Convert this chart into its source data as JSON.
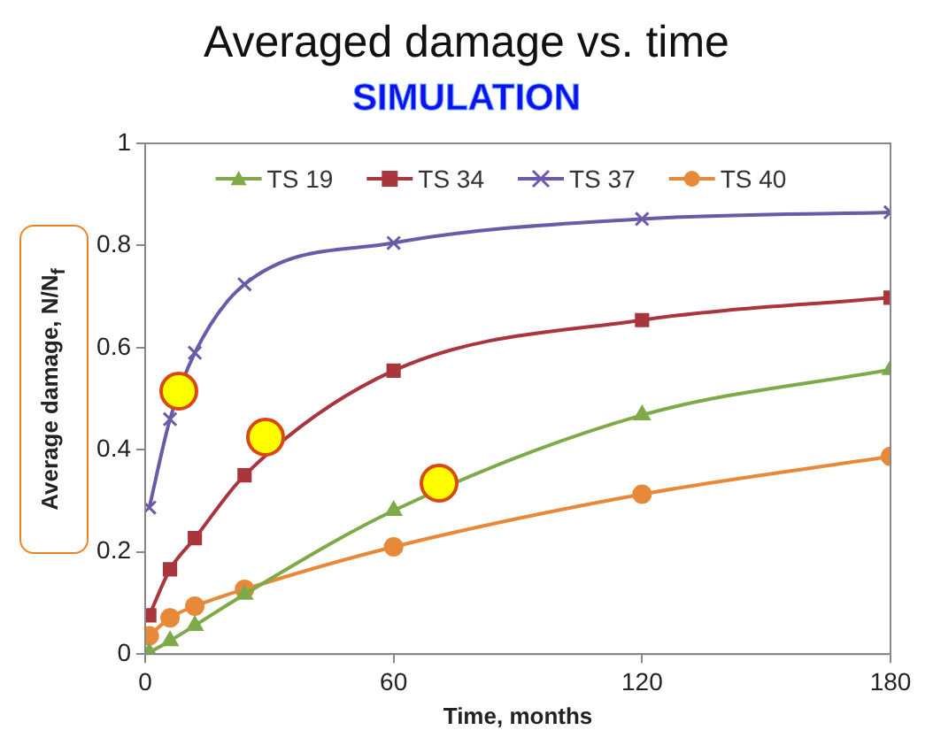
{
  "chart_data": {
    "type": "line",
    "title": "Averaged damage vs. time",
    "subtitle": "SIMULATION",
    "xlabel": "Time, months",
    "ylabel": "Average damage, N/N$_{f}$",
    "x": [
      1,
      6,
      12,
      24,
      60,
      120,
      180
    ],
    "series": [
      {
        "name": "TS 19",
        "color": "#7faa4a",
        "marker": "triangle",
        "values": [
          0.003,
          0.026,
          0.056,
          0.117,
          0.281,
          0.468,
          0.557
        ]
      },
      {
        "name": "TS 34",
        "color": "#a8363c",
        "marker": "square",
        "values": [
          0.076,
          0.166,
          0.227,
          0.35,
          0.555,
          0.654,
          0.698
        ]
      },
      {
        "name": "TS 37",
        "color": "#6a5aa8",
        "marker": "cross",
        "values": [
          0.287,
          0.46,
          0.59,
          0.724,
          0.805,
          0.852,
          0.865
        ]
      },
      {
        "name": "TS 40",
        "color": "#e8893a",
        "marker": "circle",
        "values": [
          0.036,
          0.071,
          0.094,
          0.127,
          0.21,
          0.313,
          0.387
        ]
      }
    ],
    "xlim": [
      0,
      180
    ],
    "xticks": [
      0,
      60,
      120,
      180
    ],
    "ylim": [
      0,
      1
    ],
    "yticks": [
      0,
      0.2,
      0.4,
      0.6,
      0.8,
      1
    ],
    "grid": false,
    "legend": "top"
  }
}
